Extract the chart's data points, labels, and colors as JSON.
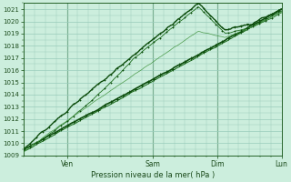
{
  "xlabel": "Pression niveau de la mer( hPa )",
  "xlim": [
    0,
    96
  ],
  "ylim": [
    1009,
    1021.5
  ],
  "yticks": [
    1009,
    1010,
    1011,
    1012,
    1013,
    1014,
    1015,
    1016,
    1017,
    1018,
    1019,
    1020,
    1021
  ],
  "day_positions": [
    16,
    48,
    72,
    96
  ],
  "day_labels": [
    "Ven",
    "Sam",
    "Dim",
    "Lun"
  ],
  "vline_positions": [
    16,
    48,
    72
  ],
  "bg_color": "#cceedd",
  "grid_color": "#99ccbb",
  "line_color": "#1a6b1a",
  "thin_line_color": "#4a9a4a",
  "dark_line_color": "#0d4d0d"
}
